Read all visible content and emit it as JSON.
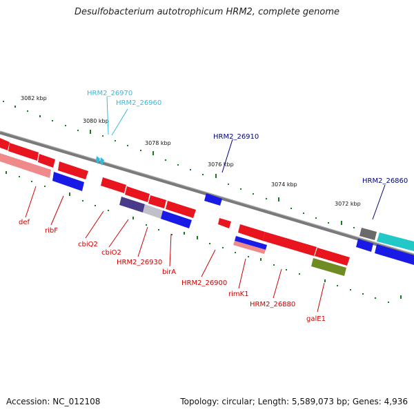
{
  "title": "Desulfobacterium autotrophicum HRM2, complete genome",
  "footer": {
    "accession": "Accession: NC_012108",
    "topology": "Topology: circular; Length: 5,589,073 bp; Genes: 4,936"
  },
  "colors": {
    "red_gene": "#e8141e",
    "blue_gene": "#1a1ae6",
    "cyan_label": "#33bbdd",
    "navy_label": "#00007a",
    "red_label": "#cc0000",
    "olive_gene": "#6e8c22",
    "teal_gene": "#22c8c8",
    "tick": "#1a7a1a"
  },
  "scale_labels": [
    "3082 kbp",
    "3080 kbp",
    "3078 kbp",
    "3076 kbp",
    "3074 kbp",
    "3072 kbp"
  ],
  "gene_labels": {
    "hrm2_26970": "HRM2_26970",
    "hrm2_26960": "HRM2_26960",
    "hrm2_26910": "HRM2_26910",
    "hrm2_26860": "HRM2_26860",
    "def": "def",
    "ribf": "ribF",
    "cbiq2": "cbiQ2",
    "cbio2": "cbiO2",
    "hrm2_26930": "HRM2_26930",
    "bira": "birA",
    "hrm2_26900": "HRM2_26900",
    "rimk1": "rimK1",
    "hrm2_26880": "HRM2_26880",
    "gale1": "galE1"
  }
}
